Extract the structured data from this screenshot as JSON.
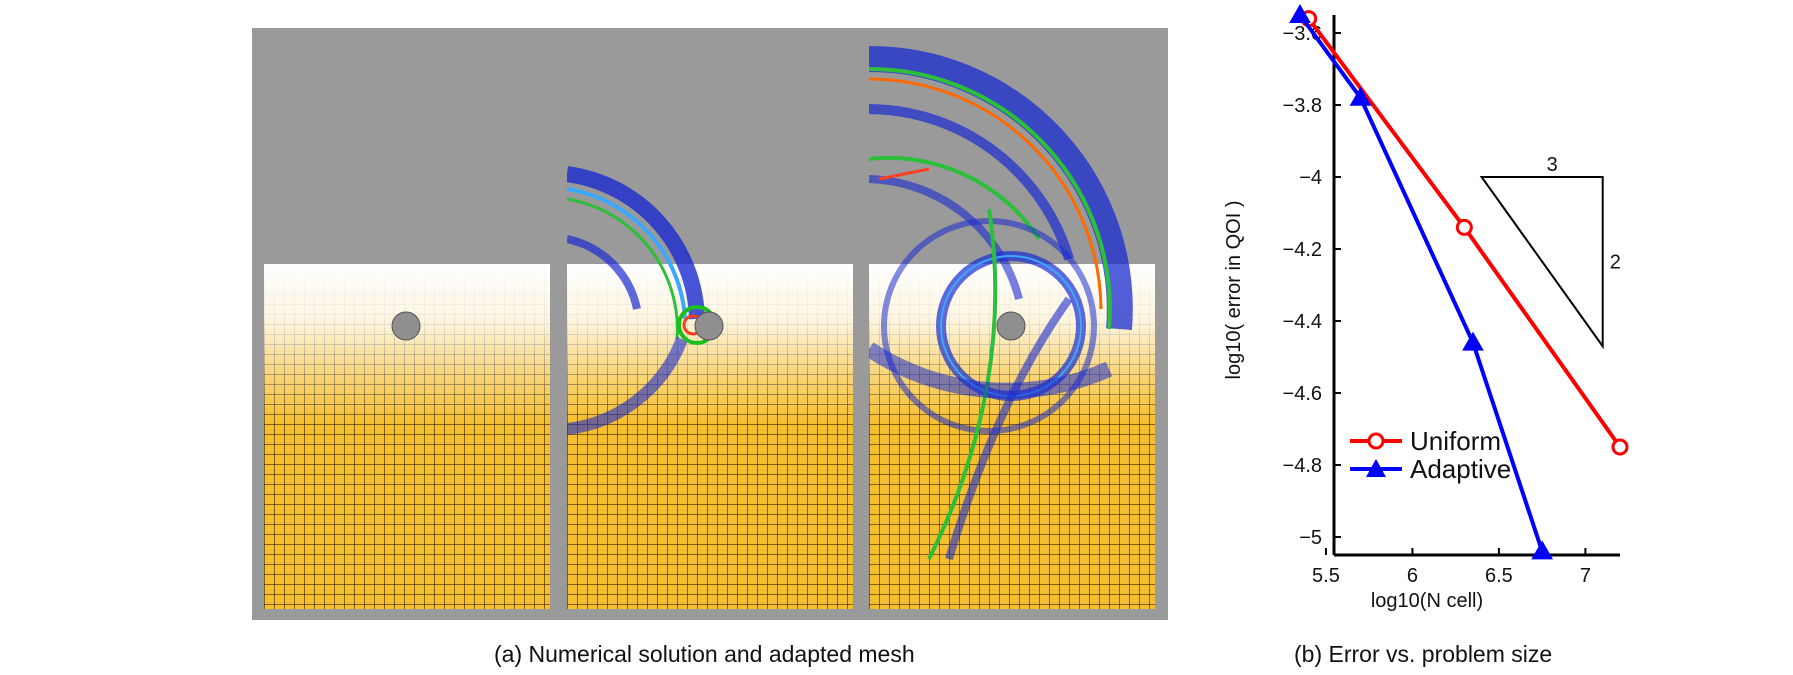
{
  "captions": {
    "a": "(a) Numerical solution and adapted mesh",
    "b": "(b) Error vs. problem size"
  },
  "chart_data": {
    "type": "line",
    "xlabel": "log10(N cell)",
    "ylabel": "log10( error in QOI )",
    "xlim": [
      5.35,
      7.2
    ],
    "ylim": [
      -5.05,
      -3.55
    ],
    "xticks": [
      5.5,
      6,
      6.5,
      7
    ],
    "yticks": [
      -3.6,
      -3.8,
      -4,
      -4.2,
      -4.4,
      -4.6,
      -4.8,
      -5
    ],
    "xtick_labels": [
      "5.5",
      "6",
      "6.5",
      "7"
    ],
    "ytick_labels": [
      "−3.6",
      "−3.8",
      "−4",
      "−4.2",
      "−4.4",
      "−4.6",
      "−4.8",
      "−5"
    ],
    "legend_position": "lower-left",
    "series": [
      {
        "name": "Uniform",
        "color": "#ff0000",
        "marker": "circle",
        "x": [
          5.4,
          6.3,
          7.2
        ],
        "y": [
          -3.56,
          -4.14,
          -4.75
        ]
      },
      {
        "name": "Adaptive",
        "color": "#0000ff",
        "marker": "triangle",
        "x": [
          5.35,
          5.7,
          6.35,
          6.75
        ],
        "y": [
          -3.55,
          -3.78,
          -4.46,
          -5.04
        ]
      }
    ],
    "slope_triangle": {
      "run_label": "3",
      "rise_label": "2",
      "x": [
        6.4,
        7.1
      ],
      "y": [
        -4.0,
        -4.47
      ]
    }
  }
}
